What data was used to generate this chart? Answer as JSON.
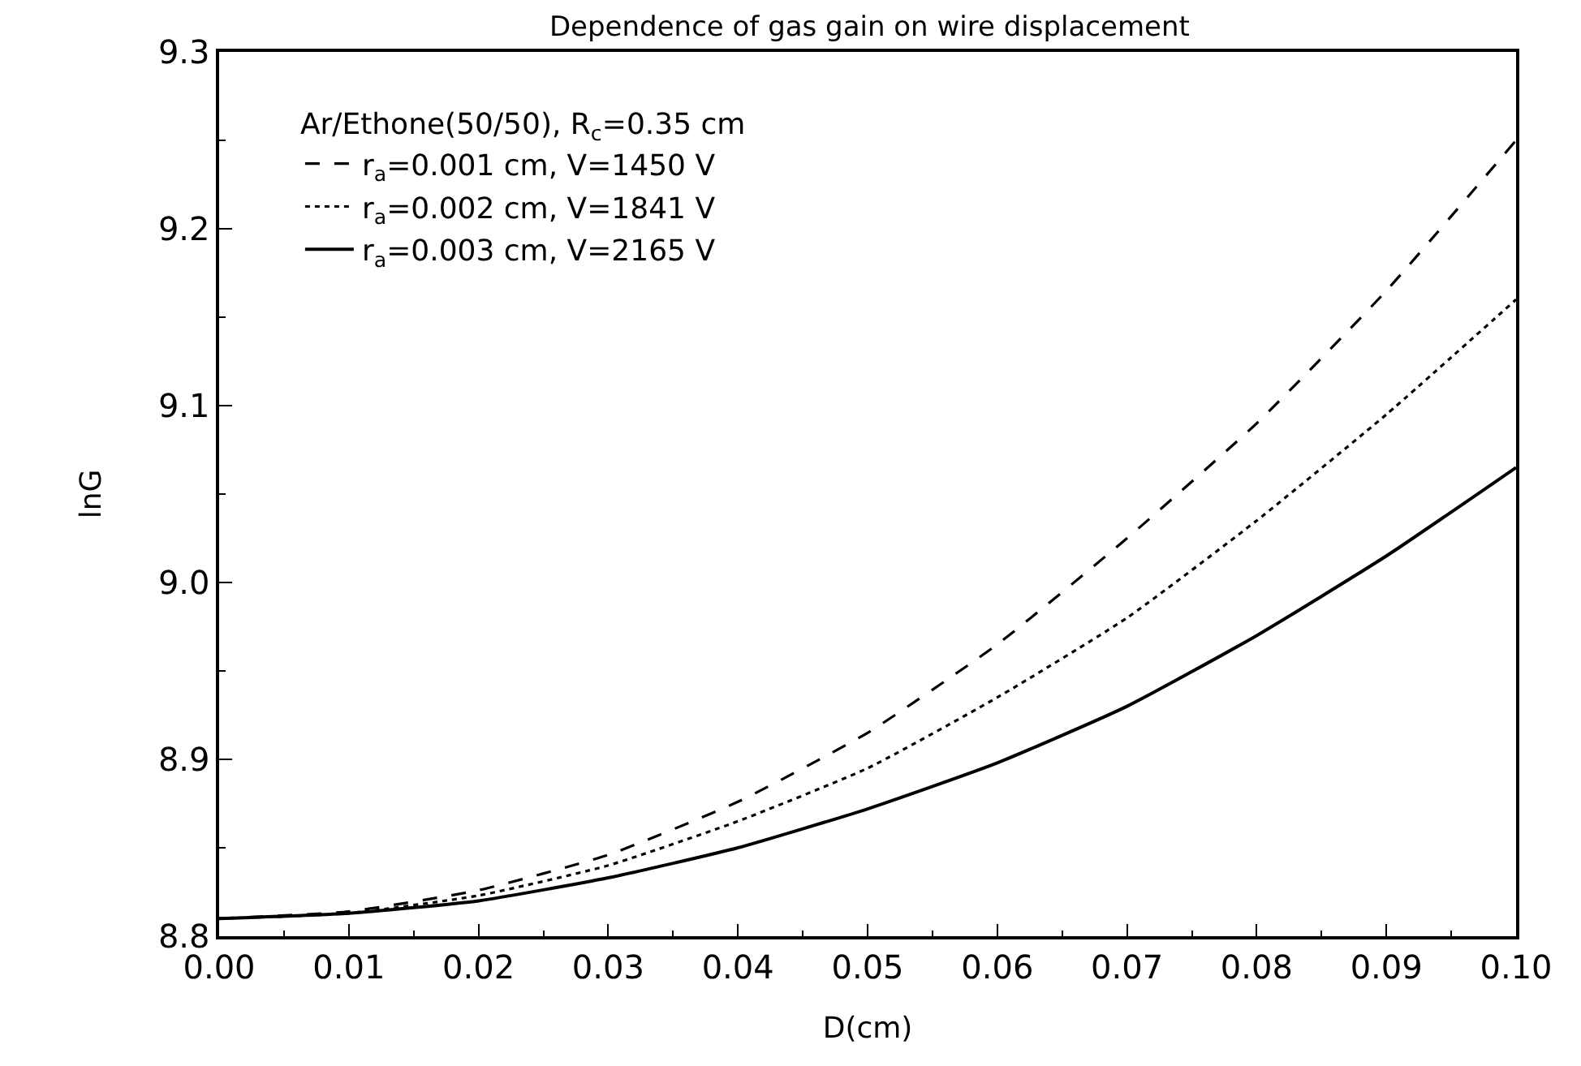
{
  "chart_data": {
    "type": "line",
    "title": "Dependence of gas gain on wire displacement",
    "xlabel": "D(cm)",
    "ylabel": "lnG",
    "legend_title": "Ar/Ethone(50/50), R$_{c}$=0.35 cm",
    "legend": "top left",
    "grid": false,
    "marker": "none",
    "x": [
      0,
      0.01,
      0.02,
      0.03,
      0.04,
      0.05,
      0.06,
      0.07,
      0.08,
      0.09,
      0.1
    ],
    "xlim": [
      0,
      0.1
    ],
    "xticks": [
      {
        "value": 0,
        "label": "0.00"
      },
      {
        "value": 0.01,
        "label": "0.01"
      },
      {
        "value": 0.02,
        "label": "0.02"
      },
      {
        "value": 0.03,
        "label": "0.03"
      },
      {
        "value": 0.04,
        "label": "0.04"
      },
      {
        "value": 0.05,
        "label": "0.05"
      },
      {
        "value": 0.06,
        "label": "0.06"
      },
      {
        "value": 0.07,
        "label": "0.07"
      },
      {
        "value": 0.08,
        "label": "0.08"
      },
      {
        "value": 0.09,
        "label": "0.09"
      },
      {
        "value": 0.1,
        "label": "0.10"
      }
    ],
    "ylim": [
      8.8,
      9.3
    ],
    "yticks": [
      {
        "value": 8.8,
        "label": "8.8"
      },
      {
        "value": 8.9,
        "label": "8.9"
      },
      {
        "value": 9,
        "label": "9.0"
      },
      {
        "value": 9.1,
        "label": "9.1"
      },
      {
        "value": 9.2,
        "label": "9.2"
      },
      {
        "value": 9.3,
        "label": "9.3"
      }
    ],
    "series": [
      {
        "name": "r$_{a}$=0.001 cm, V=1450 V",
        "color": "#000000",
        "line_style": "dashed",
        "values": [
          8.81,
          8.814,
          8.826,
          8.846,
          8.876,
          8.915,
          8.965,
          9.025,
          9.09,
          9.165,
          9.25
        ]
      },
      {
        "name": "r$_{a}$=0.002 cm, V=1841 V",
        "color": "#000000",
        "line_style": "dotted",
        "values": [
          8.81,
          8.813,
          8.823,
          8.84,
          8.865,
          8.895,
          8.935,
          8.98,
          9.035,
          9.095,
          9.16
        ]
      },
      {
        "name": "r$_{a}$=0.003 cm, V=2165 V",
        "color": "#000000",
        "line_style": "solid",
        "values": [
          8.81,
          8.813,
          8.82,
          8.833,
          8.85,
          8.872,
          8.898,
          8.93,
          8.97,
          9.015,
          9.065
        ]
      }
    ]
  }
}
